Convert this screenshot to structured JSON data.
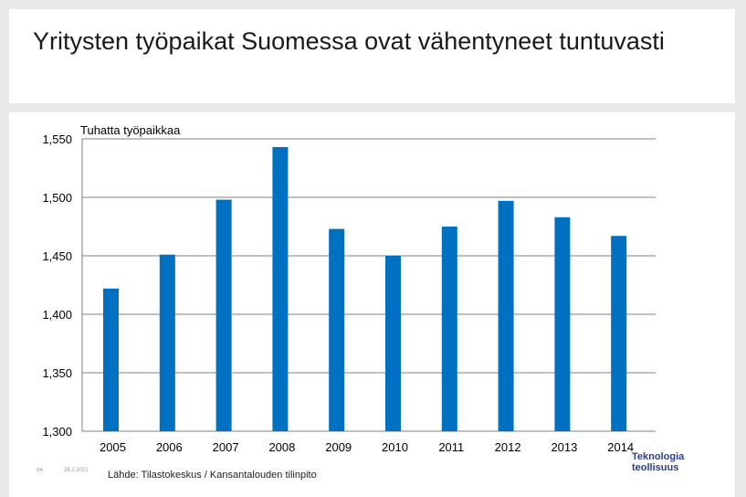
{
  "slide": {
    "title": "Yritysten työpaikat Suomessa ovat vähentyneet tuntuvasti",
    "page_number": "84",
    "date": "28.2.2021",
    "source": "Lähde: Tilastokeskus / Kansantalouden tilinpito",
    "logo_line1": "Teknologia",
    "logo_line2": "teollisuus"
  },
  "colors": {
    "bar": "#0070c0",
    "grid": "#808080",
    "background": "#e8e8e8"
  },
  "chart_data": {
    "type": "bar",
    "title": "",
    "ylabel": "Tuhatta työpaikkaa",
    "xlabel": "",
    "categories": [
      "2005",
      "2006",
      "2007",
      "2008",
      "2009",
      "2010",
      "2011",
      "2012",
      "2013",
      "2014"
    ],
    "values": [
      1422,
      1451,
      1498,
      1543,
      1473,
      1450,
      1475,
      1497,
      1483,
      1467
    ],
    "ylim": [
      1300,
      1550
    ],
    "yticks": [
      1300,
      1350,
      1400,
      1450,
      1500,
      1550
    ],
    "ytick_labels": [
      "1,300",
      "1,350",
      "1,400",
      "1,450",
      "1,500",
      "1,550"
    ],
    "grid": true,
    "legend": "none"
  }
}
